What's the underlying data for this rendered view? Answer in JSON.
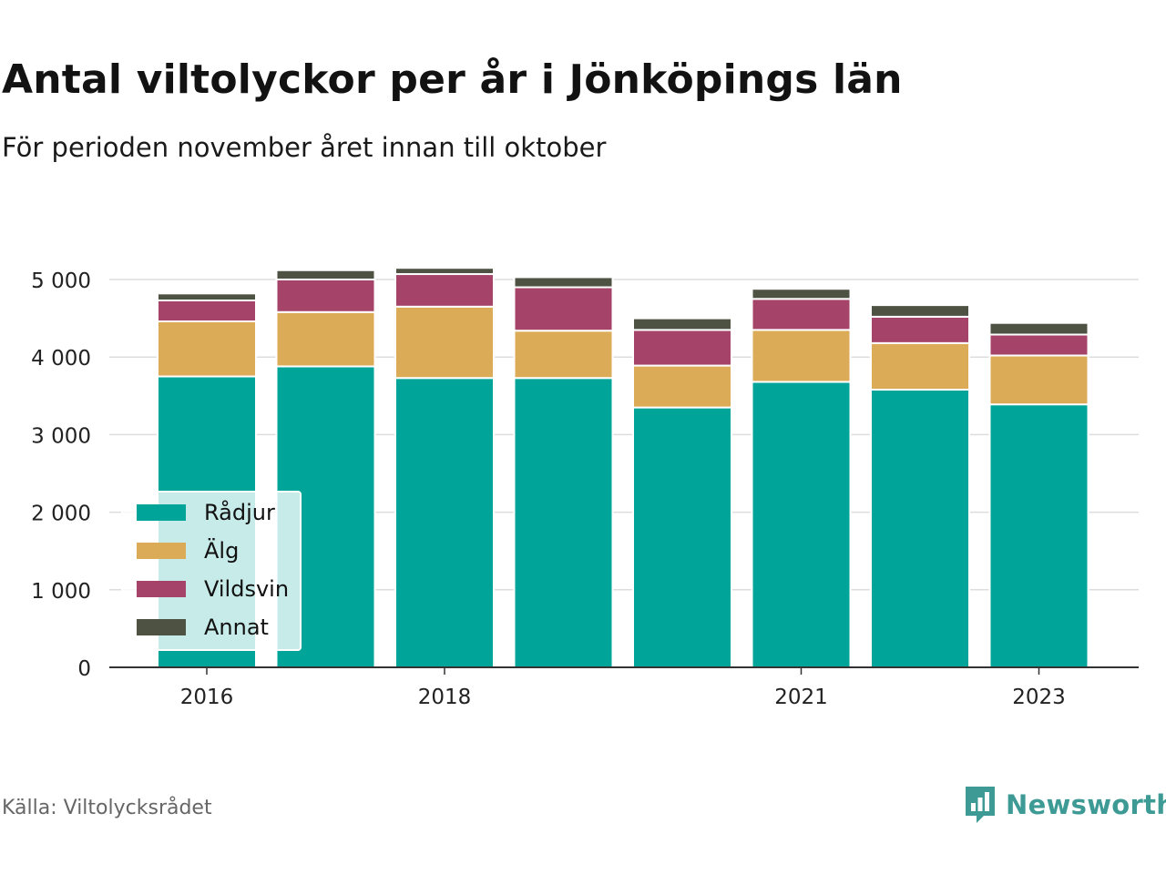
{
  "title": "Antal viltolyckor per år i Jönköpings län",
  "subtitle": "För perioden november året innan till oktober",
  "source": "Källa: Viltolycksrådet",
  "brand": "Newsworthy",
  "colors": {
    "radjur": "#00a499",
    "alg": "#dcab57",
    "vildsvin": "#a54369",
    "annat": "#4e5243",
    "grid": "#dddddd",
    "axis": "#333333",
    "brand": "#3d9a94"
  },
  "chart_data": {
    "type": "bar",
    "stacked": true,
    "categories": [
      "2016",
      "2017",
      "2018",
      "2019",
      "2020",
      "2021",
      "2022",
      "2023"
    ],
    "x_tick_labels": [
      "2016",
      "",
      "2018",
      "",
      "",
      "2021",
      "",
      "2023"
    ],
    "y_ticks": [
      0,
      1000,
      2000,
      3000,
      4000,
      5000
    ],
    "y_tick_labels": [
      "0",
      "1 000",
      "2 000",
      "3 000",
      "4 000",
      "5 000"
    ],
    "ylim": [
      0,
      5300
    ],
    "grid": true,
    "legend_position": "bottom-left",
    "series": [
      {
        "name": "Rådjur",
        "color_key": "radjur",
        "values": [
          3750,
          3880,
          3730,
          3730,
          3350,
          3680,
          3580,
          3390
        ]
      },
      {
        "name": "Älg",
        "color_key": "alg",
        "values": [
          710,
          700,
          920,
          610,
          540,
          670,
          600,
          630
        ]
      },
      {
        "name": "Vildsvin",
        "color_key": "vildsvin",
        "values": [
          270,
          420,
          420,
          560,
          460,
          400,
          340,
          270
        ]
      },
      {
        "name": "Annat",
        "color_key": "annat",
        "values": [
          90,
          120,
          80,
          130,
          150,
          130,
          150,
          150
        ]
      }
    ]
  }
}
